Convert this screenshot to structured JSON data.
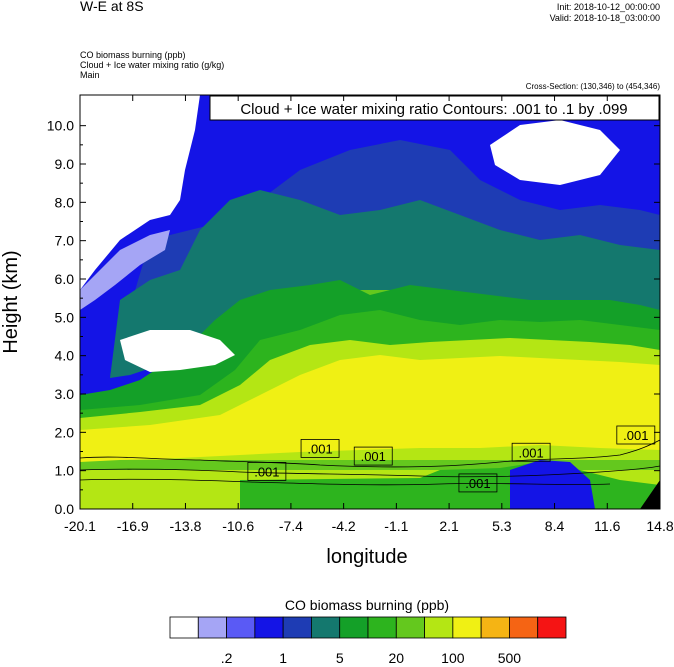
{
  "header": {
    "title": "W-E at 8S",
    "init": "Init: 2018-10-12_00:00:00",
    "valid": "Valid: 2018-10-18_03:00:00",
    "field1": "CO biomass burning   (ppb)",
    "field2": "Cloud + Ice water mixing ratio   (g/kg)",
    "field3": "Main",
    "cross_section": "Cross-Section: (130,346) to (454,346)"
  },
  "chart_data": {
    "type": "heatmap",
    "title": "W-E at 8S",
    "xlabel": "longitude",
    "ylabel": "Height (km)",
    "contour_title": "Cloud + Ice water mixing ratio Contours: .001 to .1 by .099",
    "x_ticks": [
      "-20.1",
      "-16.9",
      "-13.8",
      "-10.6",
      "-7.4",
      "-4.2",
      "-1.1",
      "2.1",
      "5.3",
      "8.4",
      "11.6",
      "14.8"
    ],
    "y_ticks": [
      "0.0",
      "1.0",
      "2.0",
      "3.0",
      "4.0",
      "5.0",
      "6.0",
      "7.0",
      "8.0",
      "9.0",
      "10.0"
    ],
    "xlim": [
      -20.1,
      14.8
    ],
    "ylim": [
      0.0,
      10.8
    ],
    "contour_label": ".001",
    "contour_levels": [
      0.001,
      0.1
    ],
    "colorbar": {
      "title": "CO biomass burning  (ppb)",
      "colors": [
        "#ffffff",
        "#a5a5f5",
        "#5a5af5",
        "#1414e6",
        "#1e3cb4",
        "#14786e",
        "#14a028",
        "#2db41e",
        "#64c81e",
        "#b4e614",
        "#f0f014",
        "#f5b414",
        "#f56414",
        "#f51414"
      ],
      "labels": [
        ".2",
        "1",
        "5",
        "20",
        "100",
        "500"
      ]
    }
  }
}
